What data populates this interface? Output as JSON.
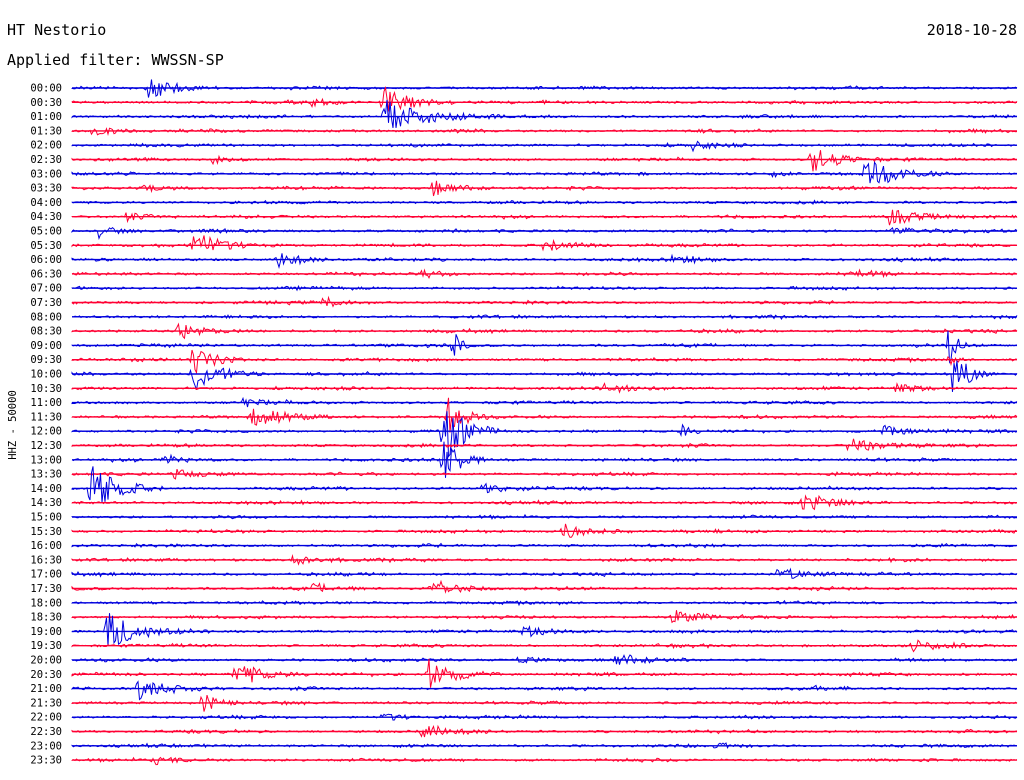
{
  "header": {
    "station": "HT Nestorio",
    "filter": "Applied filter: WWSSN-SP",
    "date": "2018-10-28"
  },
  "chart_data": {
    "type": "line",
    "title": "HT Nestorio",
    "subtitle": "Applied filter: WWSSN-SP",
    "ylabel": "HHZ - 50000",
    "row_labels": [
      "00:00",
      "00:30",
      "01:00",
      "01:30",
      "02:00",
      "02:30",
      "03:00",
      "03:30",
      "04:00",
      "04:30",
      "05:00",
      "05:30",
      "06:00",
      "06:30",
      "07:00",
      "07:30",
      "08:00",
      "08:30",
      "09:00",
      "09:30",
      "10:00",
      "10:30",
      "11:00",
      "11:30",
      "12:00",
      "12:30",
      "13:00",
      "13:30",
      "14:00",
      "14:30",
      "15:00",
      "15:30",
      "16:00",
      "16:30",
      "17:00",
      "17:30",
      "18:00",
      "18:30",
      "19:00",
      "19:30",
      "20:00",
      "20:30",
      "21:00",
      "21:30",
      "22:00",
      "22:30",
      "23:00",
      "23:30"
    ],
    "series_colors": [
      "#0000dd",
      "#ff0033"
    ],
    "grid": false,
    "legend": "none"
  }
}
